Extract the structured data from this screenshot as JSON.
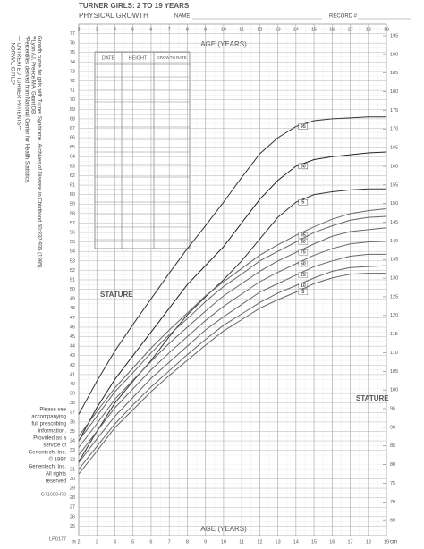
{
  "chart_data": {
    "type": "line",
    "title": "TURNER GIRLS: 2 TO 19 YEARS",
    "subtitle": "PHYSICAL GROWTH",
    "name_label": "NAME",
    "record_label": "RECORD #",
    "xlabel": "AGE (YEARS)",
    "ylabel": "STATURE",
    "left_unit": "in",
    "right_unit": "cm",
    "legend": [
      "— NORMAL GIRLS*",
      "— UNTREATED TURNER PATIENTS**"
    ],
    "notes": [
      "*Percentiles derived from National Center for Health Statistics.",
      "**Lyon AJ, Preece MA, Grant DB.",
      "Growth curve for girls with Turner Syndrome. Archives of Disease in Childhood 60:932-935 (1985)."
    ],
    "footer": [
      "Please see",
      "accompanying",
      "full prescribing",
      "information.",
      "Provided as a",
      "service of",
      "Genentech, Inc.",
      "© 1997",
      "Genentech, Inc.",
      "All rights",
      "reserved"
    ],
    "codes": [
      "G71650-R0",
      "LP0177"
    ],
    "grid": true,
    "x": [
      2,
      3,
      4,
      5,
      6,
      7,
      8,
      9,
      10,
      11,
      12,
      13,
      14,
      15,
      16,
      17,
      18,
      19
    ],
    "xlim": [
      2,
      19
    ],
    "xticks": [
      2,
      3,
      4,
      5,
      6,
      7,
      8,
      9,
      10,
      11,
      12,
      13,
      14,
      15,
      16,
      17,
      18,
      19
    ],
    "ylim": [
      24,
      78
    ],
    "yticks": [
      25,
      26,
      27,
      28,
      29,
      30,
      31,
      32,
      33,
      34,
      35,
      36,
      37,
      38,
      39,
      40,
      41,
      42,
      43,
      44,
      45,
      46,
      47,
      48,
      49,
      50,
      51,
      52,
      53,
      54,
      55,
      56,
      57,
      58,
      59,
      60,
      61,
      62,
      63,
      64,
      65,
      66,
      67,
      68,
      69,
      70,
      71,
      72,
      73,
      74,
      75,
      76,
      77
    ],
    "y2lim": [
      60.96,
      198.12
    ],
    "y2ticks": [
      65,
      70,
      75,
      80,
      85,
      90,
      95,
      100,
      105,
      110,
      115,
      120,
      125,
      130,
      135,
      140,
      145,
      150,
      155,
      160,
      165,
      170,
      175,
      180,
      185,
      190,
      195
    ],
    "series": [
      {
        "name": "95",
        "color": "#333333",
        "values": [
          36.8,
          40.3,
          43.5,
          46.3,
          49,
          51.7,
          54.3,
          56.7,
          59.2,
          61.8,
          64.3,
          66,
          67.2,
          67.8,
          68,
          68.1,
          68.2,
          68.2
        ]
      },
      {
        "name": "50",
        "color": "#222222",
        "values": [
          34,
          37.5,
          40.5,
          43,
          45.5,
          48,
          50.5,
          52.5,
          54.5,
          57,
          59.5,
          61.5,
          63,
          63.7,
          64,
          64.2,
          64.4,
          64.5
        ]
      },
      {
        "name": "5",
        "color": "#333333",
        "values": [
          31.8,
          35,
          38,
          40.3,
          42.5,
          45,
          47.3,
          49.2,
          51,
          53,
          55.3,
          57.6,
          59.2,
          60,
          60.3,
          60.5,
          60.6,
          60.6
        ]
      },
      {
        "name": "95",
        "color": "#666666",
        "values": [
          34.5,
          37.1,
          39.6,
          41.7,
          43.8,
          45.7,
          47.5,
          49.3,
          50.8,
          52.2,
          53.6,
          54.7,
          55.7,
          56.6,
          57.4,
          58,
          58.3,
          58.5
        ]
      },
      {
        "name": "90",
        "color": "#666666",
        "values": [
          34,
          36.6,
          39.2,
          41.2,
          43.3,
          45.2,
          46.9,
          48.7,
          50.3,
          51.6,
          53,
          54,
          55,
          56,
          56.7,
          57.3,
          57.6,
          57.7
        ]
      },
      {
        "name": "75",
        "color": "#666666",
        "values": [
          33.3,
          35.8,
          38.4,
          40.4,
          42.4,
          44.3,
          46,
          47.7,
          49.3,
          50.6,
          51.9,
          53,
          53.9,
          54.8,
          55.6,
          56.1,
          56.3,
          56.5
        ]
      },
      {
        "name": "50",
        "color": "#666666",
        "values": [
          32.5,
          35,
          37.5,
          39.5,
          41.5,
          43.3,
          45,
          46.7,
          48.2,
          49.5,
          50.8,
          51.8,
          52.7,
          53.6,
          54.3,
          54.8,
          55,
          55.1
        ]
      },
      {
        "name": "25",
        "color": "#666666",
        "values": [
          31.7,
          34.2,
          36.6,
          38.6,
          40.6,
          42.3,
          44,
          45.7,
          47.1,
          48.4,
          49.7,
          50.6,
          51.5,
          52.4,
          53,
          53.5,
          53.7,
          53.7
        ]
      },
      {
        "name": "10",
        "color": "#666666",
        "values": [
          31,
          33.4,
          35.8,
          37.8,
          39.7,
          41.4,
          43.1,
          44.7,
          46.2,
          47.4,
          48.6,
          49.6,
          50.4,
          51.2,
          51.9,
          52.3,
          52.4,
          52.5
        ]
      },
      {
        "name": "5",
        "color": "#666666",
        "values": [
          30.5,
          32.9,
          35.4,
          37.3,
          39.2,
          40.9,
          42.5,
          44.1,
          45.6,
          46.8,
          48,
          48.9,
          49.7,
          50.6,
          51.2,
          51.6,
          51.7,
          51.7
        ]
      }
    ]
  },
  "record_table": {
    "headers": [
      "DATE",
      "HEIGHT",
      "GROWTH RATE"
    ]
  }
}
